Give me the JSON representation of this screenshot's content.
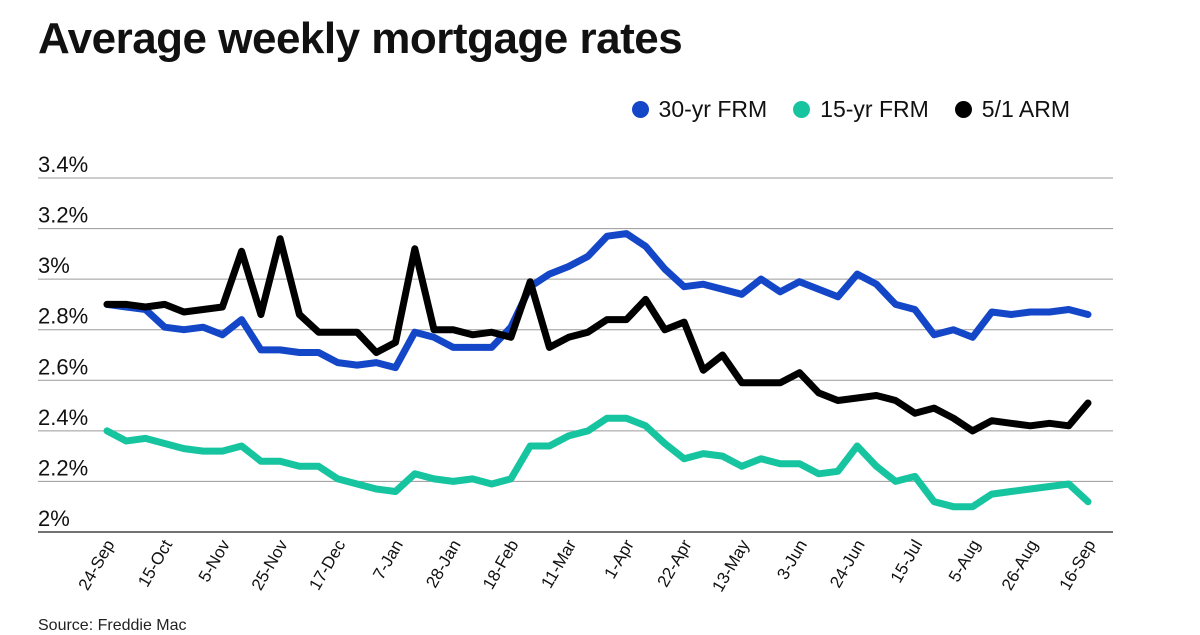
{
  "chart_data": {
    "type": "line",
    "title": "Average weekly mortgage rates",
    "source": "Source: Freddie Mac",
    "ylim": [
      2.0,
      3.4
    ],
    "yticks": [
      2.0,
      2.2,
      2.4,
      2.6,
      2.8,
      3.0,
      3.2,
      3.4
    ],
    "ytick_labels": [
      "2%",
      "2.2%",
      "2.4%",
      "2.6%",
      "2.8%",
      "3%",
      "3.2%",
      "3.4%"
    ],
    "grid": true,
    "legend_position": "top-right",
    "x_tick_labels": [
      "24-Sep",
      "15-Oct",
      "5-Nov",
      "25-Nov",
      "17-Dec",
      "7-Jan",
      "28-Jan",
      "18-Feb",
      "11-Mar",
      "1-Apr",
      "22-Apr",
      "13-May",
      "3-Jun",
      "24-Jun",
      "15-Jul",
      "5-Aug",
      "26-Aug",
      "16-Sep"
    ],
    "series": [
      {
        "name": "30-yr FRM",
        "color": "#1446c8",
        "values": [
          2.9,
          2.89,
          2.88,
          2.81,
          2.8,
          2.81,
          2.78,
          2.84,
          2.72,
          2.72,
          2.71,
          2.71,
          2.67,
          2.66,
          2.67,
          2.65,
          2.79,
          2.77,
          2.73,
          2.73,
          2.73,
          2.81,
          2.97,
          3.02,
          3.05,
          3.09,
          3.17,
          3.18,
          3.13,
          3.04,
          2.97,
          2.98,
          2.96,
          2.94,
          3.0,
          2.95,
          2.99,
          2.96,
          2.93,
          3.02,
          2.98,
          2.9,
          2.88,
          2.78,
          2.8,
          2.77,
          2.87,
          2.86,
          2.87,
          2.87,
          2.88,
          2.86
        ]
      },
      {
        "name": "15-yr FRM",
        "color": "#17c4a0",
        "values": [
          2.4,
          2.36,
          2.37,
          2.35,
          2.33,
          2.32,
          2.32,
          2.34,
          2.28,
          2.28,
          2.26,
          2.26,
          2.21,
          2.19,
          2.17,
          2.16,
          2.23,
          2.21,
          2.2,
          2.21,
          2.19,
          2.21,
          2.34,
          2.34,
          2.38,
          2.4,
          2.45,
          2.45,
          2.42,
          2.35,
          2.29,
          2.31,
          2.3,
          2.26,
          2.29,
          2.27,
          2.27,
          2.23,
          2.24,
          2.34,
          2.26,
          2.2,
          2.22,
          2.12,
          2.1,
          2.1,
          2.15,
          2.16,
          2.17,
          2.18,
          2.19,
          2.12
        ]
      },
      {
        "name": "5/1 ARM",
        "color": "#000000",
        "values": [
          2.9,
          2.9,
          2.89,
          2.9,
          2.87,
          2.88,
          2.89,
          3.11,
          2.86,
          3.16,
          2.86,
          2.79,
          2.79,
          2.79,
          2.71,
          2.75,
          3.12,
          2.8,
          2.8,
          2.78,
          2.79,
          2.77,
          2.99,
          2.73,
          2.77,
          2.79,
          2.84,
          2.84,
          2.92,
          2.8,
          2.83,
          2.64,
          2.7,
          2.59,
          2.59,
          2.59,
          2.63,
          2.55,
          2.52,
          2.53,
          2.54,
          2.52,
          2.47,
          2.49,
          2.45,
          2.4,
          2.44,
          2.43,
          2.42,
          2.43,
          2.42,
          2.51
        ]
      }
    ]
  }
}
